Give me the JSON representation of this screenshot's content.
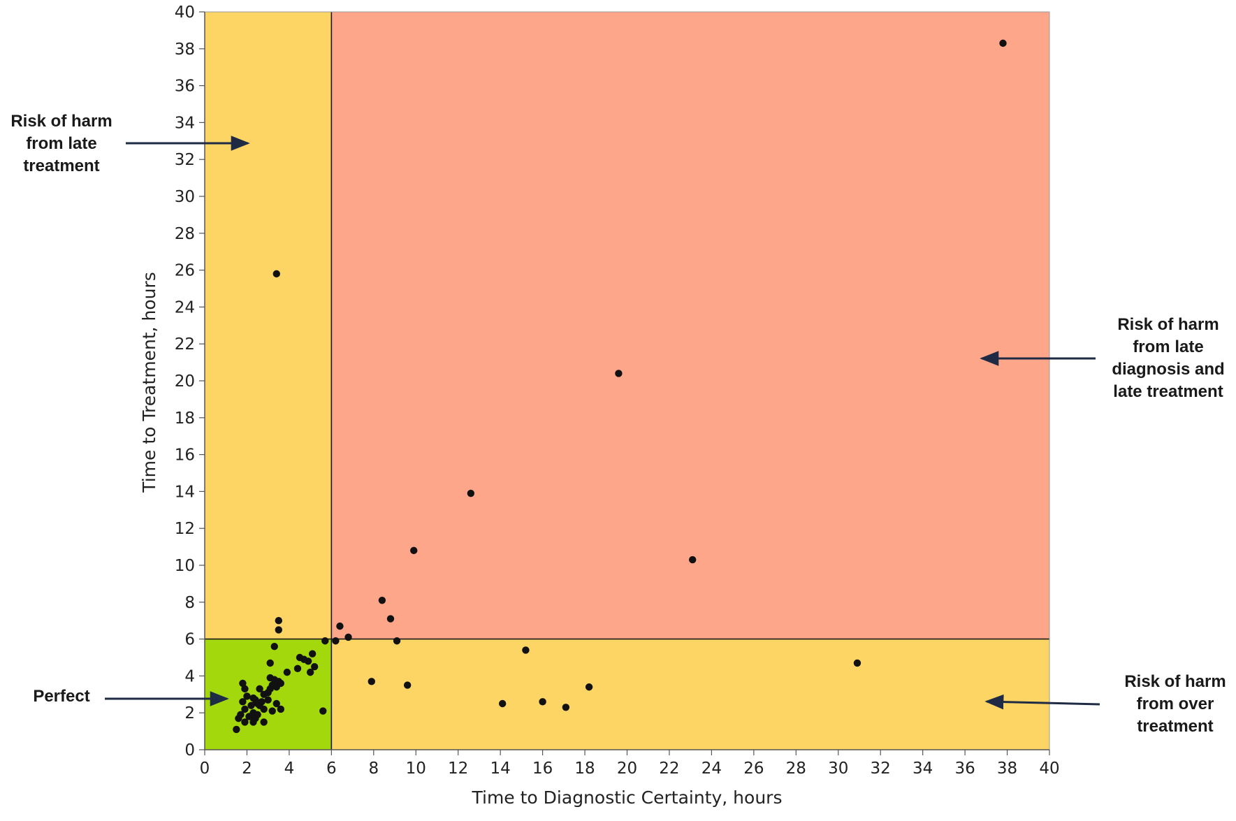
{
  "chart_data": {
    "type": "scatter",
    "xlabel": "Time to Diagnostic Certainty, hours",
    "ylabel": "Time to Treatment, hours",
    "xlim": [
      0,
      40
    ],
    "ylim": [
      0,
      40
    ],
    "x_ticks": [
      0,
      2,
      4,
      6,
      8,
      10,
      12,
      14,
      16,
      18,
      20,
      22,
      24,
      26,
      28,
      30,
      32,
      34,
      36,
      38,
      40
    ],
    "y_ticks": [
      0,
      2,
      4,
      6,
      8,
      10,
      12,
      14,
      16,
      18,
      20,
      22,
      24,
      26,
      28,
      30,
      32,
      34,
      36,
      38,
      40
    ],
    "grid": false,
    "threshold_x": 6,
    "threshold_y": 6,
    "regions": [
      {
        "name": "Perfect",
        "x": [
          0,
          6
        ],
        "y": [
          0,
          6
        ],
        "color": "#a3d80c"
      },
      {
        "name": "Risk of harm from late treatment",
        "x": [
          0,
          6
        ],
        "y": [
          6,
          40
        ],
        "color": "#fcd565"
      },
      {
        "name": "Risk of harm from over treatment",
        "x": [
          6,
          40
        ],
        "y": [
          0,
          6
        ],
        "color": "#fcd565"
      },
      {
        "name": "Risk of harm from late diagnosis and late treatment",
        "x": [
          6,
          40
        ],
        "y": [
          6,
          40
        ],
        "color": "#fea68a"
      }
    ],
    "annotations": [
      {
        "id": "late-treatment",
        "lines": [
          "Risk of harm",
          "from late",
          "treatment"
        ]
      },
      {
        "id": "late-diagnosis",
        "lines": [
          "Risk of harm",
          "from late",
          "diagnosis and",
          "late treatment"
        ]
      },
      {
        "id": "over-treatment",
        "lines": [
          "Risk of harm",
          "from over",
          "treatment"
        ]
      },
      {
        "id": "perfect",
        "lines": [
          "Perfect"
        ]
      }
    ],
    "marker_color": "#111111",
    "points": [
      [
        37.8,
        38.3
      ],
      [
        3.4,
        25.8
      ],
      [
        19.6,
        20.4
      ],
      [
        12.6,
        13.9
      ],
      [
        9.9,
        10.8
      ],
      [
        23.1,
        10.3
      ],
      [
        8.4,
        8.1
      ],
      [
        8.8,
        7.1
      ],
      [
        6.4,
        6.7
      ],
      [
        6.8,
        6.1
      ],
      [
        9.1,
        5.9
      ],
      [
        6.2,
        5.9
      ],
      [
        5.7,
        5.9
      ],
      [
        15.2,
        5.4
      ],
      [
        30.9,
        4.7
      ],
      [
        7.9,
        3.7
      ],
      [
        9.6,
        3.5
      ],
      [
        18.2,
        3.4
      ],
      [
        14.1,
        2.5
      ],
      [
        16.0,
        2.6
      ],
      [
        17.1,
        2.3
      ],
      [
        5.6,
        2.1
      ],
      [
        3.5,
        7.0
      ],
      [
        3.5,
        6.5
      ],
      [
        3.3,
        5.6
      ],
      [
        5.1,
        5.2
      ],
      [
        4.7,
        4.9
      ],
      [
        4.9,
        4.8
      ],
      [
        4.5,
        5.0
      ],
      [
        3.1,
        4.7
      ],
      [
        5.2,
        4.5
      ],
      [
        4.4,
        4.4
      ],
      [
        5.0,
        4.2
      ],
      [
        3.9,
        4.2
      ],
      [
        3.1,
        3.9
      ],
      [
        3.3,
        3.8
      ],
      [
        3.5,
        3.7
      ],
      [
        1.8,
        3.6
      ],
      [
        3.2,
        3.5
      ],
      [
        3.6,
        3.6
      ],
      [
        1.9,
        3.3
      ],
      [
        2.6,
        3.3
      ],
      [
        3.1,
        3.3
      ],
      [
        3.4,
        3.4
      ],
      [
        3.0,
        3.1
      ],
      [
        2.8,
        3.0
      ],
      [
        2.0,
        2.9
      ],
      [
        2.3,
        2.8
      ],
      [
        2.4,
        2.7
      ],
      [
        1.8,
        2.6
      ],
      [
        2.7,
        2.6
      ],
      [
        3.0,
        2.7
      ],
      [
        2.5,
        2.5
      ],
      [
        2.2,
        2.4
      ],
      [
        2.6,
        2.4
      ],
      [
        3.4,
        2.5
      ],
      [
        1.9,
        2.2
      ],
      [
        2.8,
        2.2
      ],
      [
        3.2,
        2.1
      ],
      [
        3.6,
        2.2
      ],
      [
        2.3,
        2.0
      ],
      [
        1.6,
        1.7
      ],
      [
        2.1,
        1.8
      ],
      [
        2.5,
        1.9
      ],
      [
        1.9,
        1.5
      ],
      [
        2.3,
        1.5
      ],
      [
        2.8,
        1.5
      ],
      [
        1.5,
        1.1
      ],
      [
        2.4,
        1.7
      ],
      [
        1.7,
        1.9
      ]
    ]
  }
}
